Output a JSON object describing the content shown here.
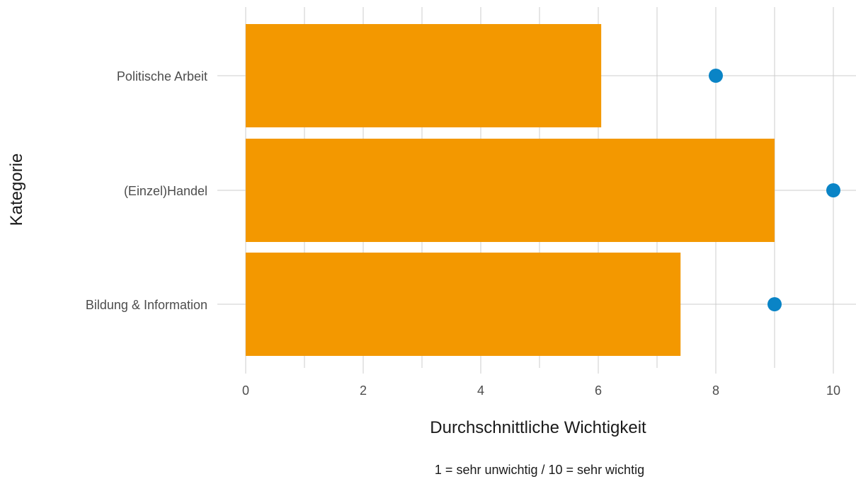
{
  "chart_data": {
    "type": "bar",
    "orientation": "horizontal",
    "categories": [
      "Politische Arbeit",
      "(Einzel)Handel",
      "Bildung & Information"
    ],
    "series": [
      {
        "type": "bar",
        "values": [
          6.05,
          9.0,
          7.4
        ],
        "color": "#F39800"
      },
      {
        "type": "scatter",
        "values": [
          8,
          10,
          9
        ],
        "color": "#0A84C6"
      }
    ],
    "xlabel": "Durchschnittliche Wichtigkeit",
    "ylabel": "Kategorie",
    "caption": "1 = sehr unwichtig / 10 = sehr wichtig",
    "xlim": [
      0,
      10.3
    ],
    "xticks": [
      0,
      2,
      4,
      6,
      8,
      10
    ],
    "grid": true,
    "legend": "none"
  }
}
